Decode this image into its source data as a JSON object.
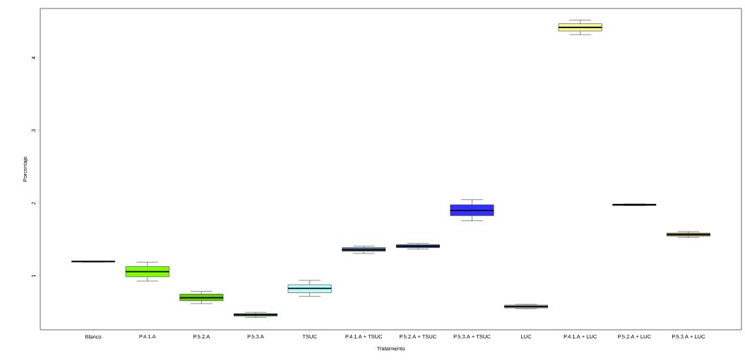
{
  "chart_data": {
    "type": "box",
    "xlabel": "Tratamiento",
    "ylabel": "Porcentaje",
    "categories": [
      "Blanco",
      "P.4.1.A",
      "P.5.2.A",
      "P.5.3.A",
      "TSUC",
      "P.4.1.A + TSUC",
      "P.5.2.A + TSUC",
      "P.5.3.A + TSUC",
      "LUC",
      "P.4.1.A + LUC",
      "P.5.2.A + LUC",
      "P.5.3.A + LUC"
    ],
    "boxes": [
      {
        "low": 1.19,
        "q1": 1.19,
        "median": 1.2,
        "q3": 1.2,
        "high": 1.2
      },
      {
        "low": 0.93,
        "q1": 0.99,
        "median": 1.06,
        "q3": 1.13,
        "high": 1.19
      },
      {
        "low": 0.62,
        "q1": 0.66,
        "median": 0.7,
        "q3": 0.75,
        "high": 0.79
      },
      {
        "low": 0.43,
        "q1": 0.45,
        "median": 0.47,
        "q3": 0.48,
        "high": 0.5
      },
      {
        "low": 0.72,
        "q1": 0.77,
        "median": 0.83,
        "q3": 0.88,
        "high": 0.94
      },
      {
        "low": 1.31,
        "q1": 1.34,
        "median": 1.36,
        "q3": 1.39,
        "high": 1.41
      },
      {
        "low": 1.37,
        "q1": 1.39,
        "median": 1.41,
        "q3": 1.43,
        "high": 1.45
      },
      {
        "low": 1.76,
        "q1": 1.83,
        "median": 1.9,
        "q3": 1.98,
        "high": 2.05
      },
      {
        "low": 0.55,
        "q1": 0.56,
        "median": 0.58,
        "q3": 0.6,
        "high": 0.61
      },
      {
        "low": 4.32,
        "q1": 4.37,
        "median": 4.42,
        "q3": 4.47,
        "high": 4.52
      },
      {
        "low": 1.97,
        "q1": 1.97,
        "median": 1.98,
        "q3": 1.99,
        "high": 1.99
      },
      {
        "low": 1.53,
        "q1": 1.55,
        "median": 1.57,
        "q3": 1.59,
        "high": 1.61
      }
    ],
    "colors": [
      "#ffffff",
      "#7fff00",
      "#66cd00",
      "#006400",
      "#bbffff",
      "#4f6d8f",
      "#1e3f8f",
      "#3030ff",
      "#a0a0a0",
      "#ffff99",
      "#000000",
      "#8b8b00"
    ],
    "ylim": [
      0.26,
      4.68
    ],
    "yticks": [
      1,
      2,
      3,
      4
    ],
    "grid": false
  }
}
